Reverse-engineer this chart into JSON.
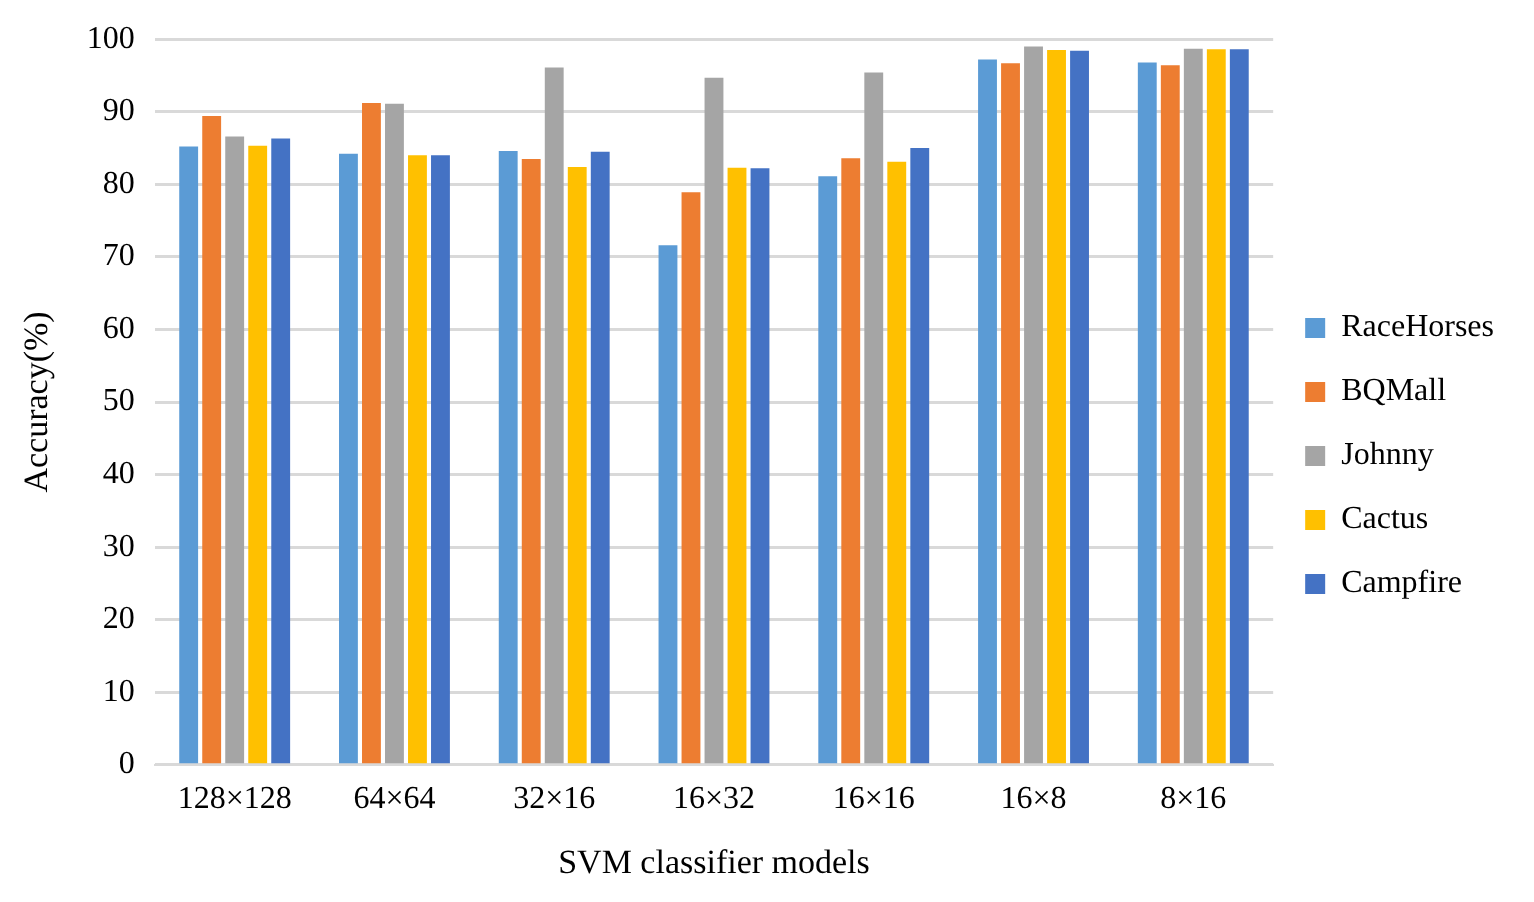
{
  "chart_data": {
    "type": "bar",
    "xlabel": "SVM classifier models",
    "ylabel": "Accuracy(%)",
    "categories": [
      "128×128",
      "64×64",
      "32×16",
      "16×32",
      "16×16",
      "16×8",
      "8×16"
    ],
    "series": [
      {
        "name": "RaceHorses",
        "color": "#5b9bd5",
        "values": [
          85.2,
          84.2,
          84.6,
          71.6,
          81.1,
          97.2,
          96.8
        ]
      },
      {
        "name": "BQMall",
        "color": "#ed7d31",
        "values": [
          89.4,
          91.2,
          83.5,
          78.9,
          83.6,
          96.7,
          96.4
        ]
      },
      {
        "name": "Johnny",
        "color": "#a5a5a5",
        "values": [
          86.6,
          91.1,
          96.1,
          94.7,
          95.4,
          99.0,
          98.7
        ]
      },
      {
        "name": "Cactus",
        "color": "#ffc000",
        "values": [
          85.3,
          84.0,
          82.4,
          82.3,
          83.1,
          98.5,
          98.6
        ]
      },
      {
        "name": "Campfire",
        "color": "#4472c4",
        "values": [
          86.3,
          84.0,
          84.5,
          82.2,
          85.0,
          98.4,
          98.6
        ]
      }
    ],
    "ylim": [
      0,
      100
    ],
    "yticks": [
      0,
      10,
      20,
      30,
      40,
      50,
      60,
      70,
      80,
      90,
      100
    ],
    "grid": "y",
    "legend": "right"
  }
}
